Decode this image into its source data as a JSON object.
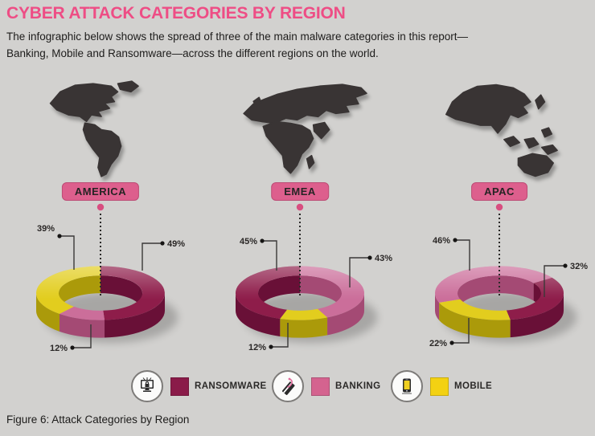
{
  "page": {
    "title": "CYBER ATTACK CATEGORIES BY REGION",
    "subtitle_line1": "The infographic below shows the spread of three of the main malware categories in this report—",
    "subtitle_line2": "Banking, Mobile and Ransomware—across the different regions on the world.",
    "caption": "Figure 6: Attack Categories by Region",
    "background": "#d2d1cf",
    "title_color": "#ee4d85"
  },
  "colors": {
    "ransomware": "#8e1d4a",
    "ransomware_side": "#691037",
    "banking": "#cb6e9a",
    "banking_side": "#a44a74",
    "mobile": "#e2cd1e",
    "mobile_side": "#ab9a0a",
    "region_pill": "#dd5f8d",
    "pointer_dot": "#d84e80",
    "map_silhouette": "#393434"
  },
  "legend": [
    {
      "label": "RANSOMWARE",
      "color": "#8a1b49",
      "icon": "ransomware-monitor-lock-icon"
    },
    {
      "label": "BANKING",
      "color": "#d4638f",
      "icon": "banking-card-hook-icon"
    },
    {
      "label": "MOBILE",
      "color": "#f3d112",
      "icon": "mobile-phone-icon"
    }
  ],
  "chart_data": [
    {
      "type": "pie",
      "variant": "3d-donut",
      "region": "AMERICA",
      "start_angle": 0,
      "segments": [
        {
          "name": "RANSOMWARE",
          "value": 49
        },
        {
          "name": "BANKING",
          "value": 12
        },
        {
          "name": "MOBILE",
          "value": 39
        }
      ]
    },
    {
      "type": "pie",
      "variant": "3d-donut",
      "region": "EMEA",
      "start_angle": 0,
      "segments": [
        {
          "name": "BANKING",
          "value": 43
        },
        {
          "name": "MOBILE",
          "value": 12
        },
        {
          "name": "RANSOMWARE",
          "value": 45
        }
      ]
    },
    {
      "type": "pie",
      "variant": "3d-donut",
      "region": "APAC",
      "start_angle": 55,
      "segments": [
        {
          "name": "RANSOMWARE",
          "value": 32
        },
        {
          "name": "MOBILE",
          "value": 22
        },
        {
          "name": "BANKING",
          "value": 46
        }
      ]
    }
  ]
}
